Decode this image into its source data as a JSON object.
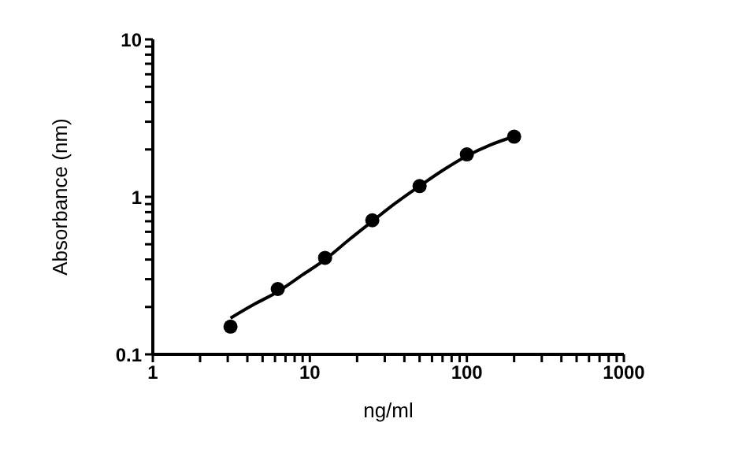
{
  "chart_data": {
    "type": "scatter",
    "xlabel": "ng/ml",
    "ylabel": "Absorbance (nm)",
    "log": "xy",
    "marker": "circle",
    "xlim": [
      1,
      1000
    ],
    "ylim": [
      0.1,
      10
    ],
    "xticks": [
      1,
      {
        "value": 2,
        "label": null
      },
      {
        "value": 3,
        "label": null
      },
      {
        "value": 4,
        "label": null
      },
      {
        "value": 5,
        "label": null
      },
      {
        "value": 6,
        "label": null
      },
      {
        "value": 7,
        "label": null
      },
      {
        "value": 8,
        "label": null
      },
      {
        "value": 9,
        "label": null
      },
      10,
      {
        "value": 20,
        "label": null
      },
      {
        "value": 30,
        "label": null
      },
      {
        "value": 40,
        "label": null
      },
      {
        "value": 50,
        "label": null
      },
      {
        "value": 60,
        "label": null
      },
      {
        "value": 70,
        "label": null
      },
      {
        "value": 80,
        "label": null
      },
      {
        "value": 90,
        "label": null
      },
      100,
      {
        "value": 200,
        "label": null
      },
      {
        "value": 300,
        "label": null
      },
      {
        "value": 400,
        "label": null
      },
      {
        "value": 500,
        "label": null
      },
      {
        "value": 600,
        "label": null
      },
      {
        "value": 700,
        "label": null
      },
      {
        "value": 800,
        "label": null
      },
      {
        "value": 900,
        "label": null
      },
      1000
    ],
    "yticks": [
      0.1,
      {
        "value": 0.2,
        "label": null
      },
      {
        "value": 0.3,
        "label": null
      },
      {
        "value": 0.4,
        "label": null
      },
      {
        "value": 0.5,
        "label": null
      },
      {
        "value": 0.6,
        "label": null
      },
      {
        "value": 0.7,
        "label": null
      },
      {
        "value": 0.8,
        "label": null
      },
      {
        "value": 0.9,
        "label": null
      },
      1,
      {
        "value": 2,
        "label": null
      },
      {
        "value": 3,
        "label": null
      },
      {
        "value": 4,
        "label": null
      },
      {
        "value": 5,
        "label": null
      },
      {
        "value": 6,
        "label": null
      },
      {
        "value": 7,
        "label": null
      },
      {
        "value": 8,
        "label": null
      },
      {
        "value": 9,
        "label": null
      },
      10
    ],
    "series": [
      {
        "color": "#000000",
        "x": [
          3.125,
          6.25,
          12.5,
          25,
          50,
          100,
          200
        ],
        "values": [
          0.15,
          0.26,
          0.41,
          0.71,
          1.17,
          1.86,
          2.41
        ]
      },
      {
        "type": "line",
        "color": "#000000",
        "marker": "none",
        "line_style": "solid",
        "x": [
          3.125,
          4.5,
          6.25,
          9,
          12.5,
          18,
          25,
          35,
          50,
          70,
          100,
          140,
          200
        ],
        "values": [
          0.17,
          0.21,
          0.25,
          0.32,
          0.4,
          0.54,
          0.7,
          0.91,
          1.17,
          1.47,
          1.82,
          2.13,
          2.42
        ]
      }
    ]
  }
}
